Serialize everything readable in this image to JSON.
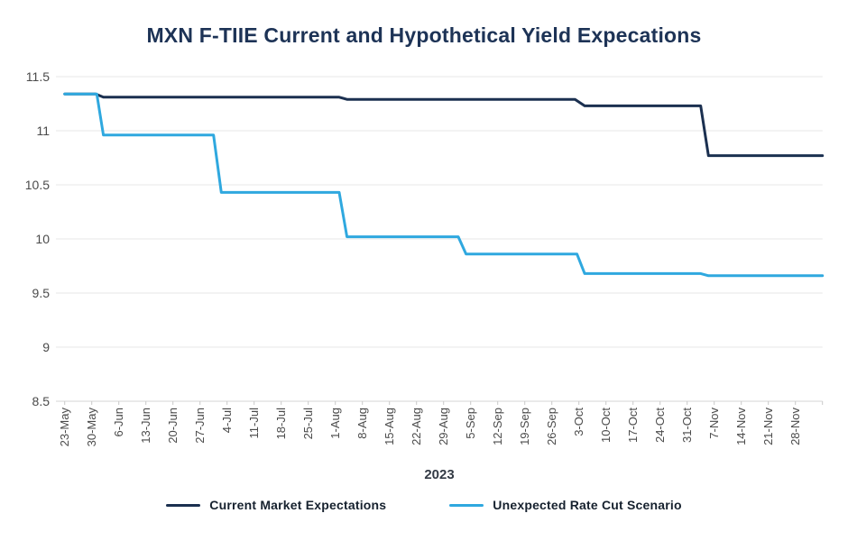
{
  "page": {
    "background": "#ffffff"
  },
  "chart_data": {
    "type": "line",
    "title": "MXN F-TIIE Current and Hypothetical Yield Expecations",
    "xlabel": "2023",
    "ylabel": "",
    "ylim": [
      8.5,
      11.5
    ],
    "ytick_values": [
      11.5,
      11,
      10.5,
      10,
      9.5,
      9,
      8.5
    ],
    "ytick_labels": [
      "11.5",
      "11",
      "10.5",
      "10",
      "9.5",
      "9",
      "8.5"
    ],
    "x_tick_labels": [
      "23-May",
      "30-May",
      "6-Jun",
      "13-Jun",
      "20-Jun",
      "27-Jun",
      "4-Jul",
      "11-Jul",
      "18-Jul",
      "25-Jul",
      "1-Aug",
      "8-Aug",
      "15-Aug",
      "22-Aug",
      "29-Aug",
      "5-Sep",
      "12-Sep",
      "19-Sep",
      "26-Sep",
      "3-Oct",
      "10-Oct",
      "17-Oct",
      "24-Oct",
      "31-Oct",
      "7-Nov",
      "14-Nov",
      "21-Nov",
      "28-Nov"
    ],
    "x_tick_interval_days": 7,
    "x_range_days": [
      0,
      196
    ],
    "grid": "horizontal",
    "legend_position": "bottom",
    "colors": {
      "grid": "#e7e7e7",
      "axis": "#d6d6d6",
      "tick": "#c9c9c9",
      "tick_label": "#4a4a4a",
      "title": "#1d3356"
    },
    "series": [
      {
        "name": "Current Market Expectations",
        "color": "#1b3050",
        "points": [
          [
            0,
            11.34
          ],
          [
            8,
            11.34
          ],
          [
            10,
            11.31
          ],
          [
            71,
            11.31
          ],
          [
            73,
            11.29
          ],
          [
            132,
            11.29
          ],
          [
            134.5,
            11.23
          ],
          [
            164.5,
            11.23
          ],
          [
            166.5,
            10.77
          ],
          [
            196,
            10.77
          ]
        ]
      },
      {
        "name": "Unexpected Rate Cut Scenario",
        "color": "#2fa8df",
        "points": [
          [
            0,
            11.34
          ],
          [
            8.3,
            11.34
          ],
          [
            10,
            10.96
          ],
          [
            38.5,
            10.96
          ],
          [
            40.5,
            10.43
          ],
          [
            71,
            10.43
          ],
          [
            73,
            10.02
          ],
          [
            101.8,
            10.02
          ],
          [
            103.8,
            9.86
          ],
          [
            132.5,
            9.86
          ],
          [
            134.5,
            9.68
          ],
          [
            164.5,
            9.68
          ],
          [
            166.5,
            9.66
          ],
          [
            196,
            9.66
          ]
        ]
      }
    ]
  }
}
